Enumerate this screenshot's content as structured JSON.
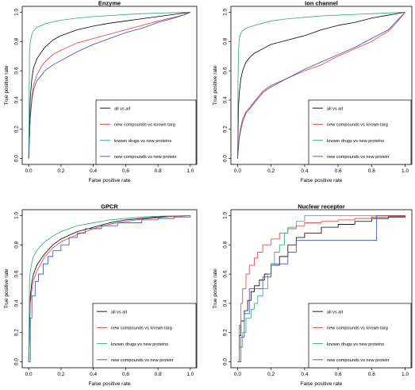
{
  "chart_data": [
    {
      "type": "line",
      "title": "Enzyme",
      "xlabel": "False positive rate",
      "ylabel": "True positive rate",
      "xlim": [
        0,
        1
      ],
      "ylim": [
        0,
        1
      ],
      "xticks": [
        "0.0",
        "0.2",
        "0.4",
        "0.6",
        "0.8",
        "1.0"
      ],
      "yticks": [
        "0.0",
        "0.2",
        "0.4",
        "0.6",
        "0.8",
        "1.0"
      ],
      "grid": false,
      "legend_position": "bottom-right",
      "series": [
        {
          "name": "all vs all",
          "color": "#000000",
          "step": false,
          "x": [
            0,
            0.01,
            0.02,
            0.03,
            0.05,
            0.08,
            0.1,
            0.15,
            0.2,
            0.3,
            0.4,
            0.5,
            0.6,
            0.7,
            0.8,
            0.9,
            0.97,
            1.0
          ],
          "y": [
            0,
            0.42,
            0.55,
            0.62,
            0.68,
            0.73,
            0.76,
            0.81,
            0.84,
            0.88,
            0.905,
            0.925,
            0.94,
            0.955,
            0.97,
            0.985,
            0.995,
            1.0
          ]
        },
        {
          "name": "new compounds vs known targ",
          "color": "#e23b3b",
          "step": false,
          "x": [
            0,
            0.01,
            0.02,
            0.03,
            0.05,
            0.08,
            0.1,
            0.15,
            0.2,
            0.3,
            0.4,
            0.5,
            0.6,
            0.7,
            0.8,
            0.9,
            0.97,
            1.0
          ],
          "y": [
            0,
            0.3,
            0.42,
            0.5,
            0.57,
            0.63,
            0.66,
            0.71,
            0.74,
            0.79,
            0.82,
            0.85,
            0.88,
            0.91,
            0.94,
            0.965,
            0.985,
            1.0
          ]
        },
        {
          "name": "known drugs   vs new proteins",
          "color": "#2aa87a",
          "step": false,
          "x": [
            0,
            0.005,
            0.01,
            0.02,
            0.03,
            0.05,
            0.08,
            0.1,
            0.15,
            0.2,
            0.3,
            0.4,
            0.5,
            0.6,
            0.7,
            0.8,
            0.9,
            1.0
          ],
          "y": [
            0,
            0.72,
            0.8,
            0.85,
            0.875,
            0.895,
            0.91,
            0.92,
            0.935,
            0.945,
            0.96,
            0.97,
            0.977,
            0.984,
            0.99,
            0.994,
            0.997,
            1.0
          ]
        },
        {
          "name": "new compounds vs new protein",
          "color": "#3a4aa8",
          "step": false,
          "x": [
            0,
            0.01,
            0.02,
            0.03,
            0.05,
            0.08,
            0.1,
            0.15,
            0.2,
            0.3,
            0.4,
            0.5,
            0.6,
            0.7,
            0.8,
            0.9,
            0.97,
            1.0
          ],
          "y": [
            0,
            0.28,
            0.4,
            0.47,
            0.53,
            0.57,
            0.6,
            0.64,
            0.67,
            0.73,
            0.78,
            0.82,
            0.86,
            0.89,
            0.93,
            0.96,
            0.985,
            1.0
          ]
        }
      ],
      "legend": [
        "all vs all",
        "new compounds vs known targ",
        "known drugs   vs new proteins",
        "new compounds vs new protein"
      ]
    },
    {
      "type": "line",
      "title": "Ion channel",
      "xlabel": "False positive rate",
      "ylabel": "True positive rate",
      "xlim": [
        0,
        1
      ],
      "ylim": [
        0,
        1
      ],
      "xticks": [
        "0.0",
        "0.2",
        "0.4",
        "0.6",
        "0.8",
        "1.0"
      ],
      "yticks": [
        "0.0",
        "0.2",
        "0.4",
        "0.6",
        "0.8",
        "1.0"
      ],
      "grid": false,
      "legend_position": "bottom-right",
      "series": [
        {
          "name": "all vs all",
          "color": "#000000",
          "step": false,
          "x": [
            0,
            0.005,
            0.01,
            0.02,
            0.03,
            0.05,
            0.08,
            0.1,
            0.15,
            0.2,
            0.3,
            0.4,
            0.5,
            0.6,
            0.7,
            0.8,
            0.9,
            0.95,
            1.0
          ],
          "y": [
            0,
            0.35,
            0.45,
            0.55,
            0.6,
            0.66,
            0.7,
            0.72,
            0.75,
            0.78,
            0.81,
            0.84,
            0.88,
            0.91,
            0.93,
            0.96,
            0.98,
            0.99,
            1.0
          ]
        },
        {
          "name": "new compounds vs known targ",
          "color": "#e23b3b",
          "step": false,
          "x": [
            0,
            0.01,
            0.02,
            0.03,
            0.05,
            0.08,
            0.1,
            0.15,
            0.2,
            0.3,
            0.4,
            0.5,
            0.6,
            0.7,
            0.8,
            0.9,
            0.95,
            1.0
          ],
          "y": [
            0,
            0.15,
            0.22,
            0.27,
            0.32,
            0.36,
            0.39,
            0.46,
            0.5,
            0.55,
            0.6,
            0.64,
            0.7,
            0.75,
            0.8,
            0.87,
            0.93,
            1.0
          ]
        },
        {
          "name": "known drugs   vs new proteins",
          "color": "#2aa87a",
          "step": false,
          "x": [
            0,
            0.003,
            0.006,
            0.01,
            0.02,
            0.03,
            0.05,
            0.1,
            0.2,
            0.3,
            0.4,
            0.5,
            0.6,
            0.7,
            0.8,
            0.9,
            1.0
          ],
          "y": [
            0,
            0.6,
            0.75,
            0.82,
            0.86,
            0.875,
            0.89,
            0.91,
            0.94,
            0.955,
            0.965,
            0.975,
            0.98,
            0.985,
            0.99,
            0.995,
            1.0
          ]
        },
        {
          "name": "new compounds vs new protein",
          "color": "#3a4aa8",
          "step": false,
          "x": [
            0,
            0.01,
            0.02,
            0.03,
            0.05,
            0.08,
            0.1,
            0.15,
            0.2,
            0.3,
            0.4,
            0.5,
            0.6,
            0.7,
            0.8,
            0.9,
            0.95,
            1.0
          ],
          "y": [
            0,
            0.14,
            0.2,
            0.25,
            0.31,
            0.35,
            0.38,
            0.45,
            0.49,
            0.55,
            0.61,
            0.66,
            0.71,
            0.76,
            0.82,
            0.88,
            0.94,
            1.0
          ]
        }
      ],
      "legend": [
        "all vs all",
        "new compounds vs known targ",
        "known drugs   vs new proteins",
        "new compounds vs new protein"
      ]
    },
    {
      "type": "line",
      "title": "GPCR",
      "xlabel": "False positive rate",
      "ylabel": "True positive rate",
      "xlim": [
        0,
        1
      ],
      "ylim": [
        0,
        1
      ],
      "xticks": [
        "0.0",
        "0.2",
        "0.4",
        "0.6",
        "0.8",
        "1.0"
      ],
      "yticks": [
        "0.0",
        "0.2",
        "0.4",
        "0.6",
        "0.8",
        "1.0"
      ],
      "grid": false,
      "legend_position": "bottom-right",
      "series": [
        {
          "name": "all vs all",
          "color": "#000000",
          "step": false,
          "x": [
            0,
            0.01,
            0.02,
            0.03,
            0.05,
            0.08,
            0.1,
            0.15,
            0.2,
            0.3,
            0.4,
            0.5,
            0.6,
            0.7,
            0.8,
            0.9,
            1.0
          ],
          "y": [
            0,
            0.45,
            0.55,
            0.6,
            0.66,
            0.71,
            0.74,
            0.8,
            0.84,
            0.89,
            0.92,
            0.95,
            0.97,
            0.98,
            0.99,
            0.995,
            1.0
          ]
        },
        {
          "name": "new compounds vs known targ",
          "color": "#e23b3b",
          "step": false,
          "x": [
            0,
            0.01,
            0.02,
            0.03,
            0.05,
            0.08,
            0.1,
            0.15,
            0.2,
            0.3,
            0.4,
            0.5,
            0.6,
            0.7,
            0.8,
            0.9,
            1.0
          ],
          "y": [
            0,
            0.4,
            0.5,
            0.56,
            0.62,
            0.68,
            0.72,
            0.78,
            0.82,
            0.87,
            0.91,
            0.94,
            0.96,
            0.975,
            0.985,
            0.995,
            1.0
          ]
        },
        {
          "name": "known drugs   vs new proteins",
          "color": "#2aa87a",
          "step": false,
          "x": [
            0,
            0.005,
            0.01,
            0.02,
            0.03,
            0.05,
            0.08,
            0.1,
            0.15,
            0.2,
            0.3,
            0.4,
            0.5,
            0.6,
            0.7,
            0.8,
            0.9,
            1.0
          ],
          "y": [
            0,
            0.55,
            0.62,
            0.68,
            0.72,
            0.76,
            0.8,
            0.82,
            0.86,
            0.89,
            0.93,
            0.95,
            0.97,
            0.98,
            0.99,
            0.995,
            0.998,
            1.0
          ]
        },
        {
          "name": "new compounds vs new protein",
          "color": "#3a4aa8",
          "step": true,
          "x": [
            0,
            0.01,
            0.02,
            0.04,
            0.06,
            0.09,
            0.12,
            0.15,
            0.2,
            0.25,
            0.3,
            0.35,
            0.45,
            0.55,
            0.7,
            0.8,
            0.9,
            1.0
          ],
          "y": [
            0,
            0.3,
            0.45,
            0.55,
            0.6,
            0.67,
            0.72,
            0.76,
            0.8,
            0.85,
            0.88,
            0.91,
            0.93,
            0.95,
            0.97,
            0.98,
            0.99,
            1.0
          ]
        }
      ],
      "legend": [
        "all vs all",
        "new compounds vs known targ",
        "known drugs   vs new proteins",
        "new compounds vs new protein"
      ]
    },
    {
      "type": "line",
      "title": "Nuclear receptor",
      "xlabel": "False positive rate",
      "ylabel": "True positive rate",
      "xlim": [
        0,
        1
      ],
      "ylim": [
        0,
        1
      ],
      "xticks": [
        "0.0",
        "0.2",
        "0.4",
        "0.6",
        "0.8",
        "1.0"
      ],
      "yticks": [
        "0.0",
        "0.2",
        "0.4",
        "0.6",
        "0.8",
        "1.0"
      ],
      "grid": false,
      "legend_position": "bottom-right",
      "series": [
        {
          "name": "all vs all",
          "color": "#000000",
          "step": true,
          "x": [
            0,
            0.01,
            0.02,
            0.04,
            0.06,
            0.08,
            0.1,
            0.13,
            0.16,
            0.2,
            0.25,
            0.3,
            0.35,
            0.4,
            0.5,
            0.6,
            0.7,
            0.8,
            0.9,
            1.0
          ],
          "y": [
            0,
            0.18,
            0.28,
            0.35,
            0.42,
            0.48,
            0.52,
            0.56,
            0.6,
            0.66,
            0.72,
            0.8,
            0.85,
            0.88,
            0.92,
            0.94,
            0.96,
            0.98,
            0.99,
            1.0
          ]
        },
        {
          "name": "new compounds vs known targ",
          "color": "#e23b3b",
          "step": true,
          "x": [
            0,
            0.01,
            0.02,
            0.03,
            0.05,
            0.07,
            0.1,
            0.12,
            0.15,
            0.2,
            0.25,
            0.3,
            0.35,
            0.4,
            0.5,
            0.6,
            0.7,
            0.8,
            0.9,
            1.0
          ],
          "y": [
            0,
            0.25,
            0.4,
            0.5,
            0.6,
            0.66,
            0.71,
            0.75,
            0.8,
            0.84,
            0.88,
            0.91,
            0.93,
            0.95,
            0.96,
            0.97,
            0.98,
            0.99,
            0.995,
            1.0
          ]
        },
        {
          "name": "known drugs   vs new proteins",
          "color": "#2aa87a",
          "step": true,
          "x": [
            0,
            0.01,
            0.03,
            0.05,
            0.08,
            0.1,
            0.12,
            0.15,
            0.18,
            0.2,
            0.22,
            0.25,
            0.28,
            0.3,
            0.35,
            0.4,
            0.5,
            0.6,
            0.8,
            1.0
          ],
          "y": [
            0,
            0.1,
            0.2,
            0.3,
            0.36,
            0.4,
            0.45,
            0.5,
            0.6,
            0.66,
            0.75,
            0.8,
            0.88,
            0.92,
            0.96,
            1.0,
            1.0,
            1.0,
            1.0,
            1.0
          ]
        },
        {
          "name": "new compounds vs new protein",
          "color": "#3a4aa8",
          "step": true,
          "x": [
            0,
            0.02,
            0.04,
            0.07,
            0.1,
            0.15,
            0.2,
            0.25,
            0.3,
            0.35,
            0.45,
            0.55,
            0.65,
            0.82,
            0.83,
            1.0
          ],
          "y": [
            0,
            0.17,
            0.33,
            0.5,
            0.5,
            0.58,
            0.67,
            0.67,
            0.75,
            0.83,
            0.83,
            0.83,
            0.83,
            0.83,
            1.0,
            1.0
          ]
        }
      ],
      "legend": [
        "all vs all",
        "new compounds vs known targ",
        "known drugs   vs new proteins",
        "new compounds vs new protein"
      ]
    }
  ]
}
